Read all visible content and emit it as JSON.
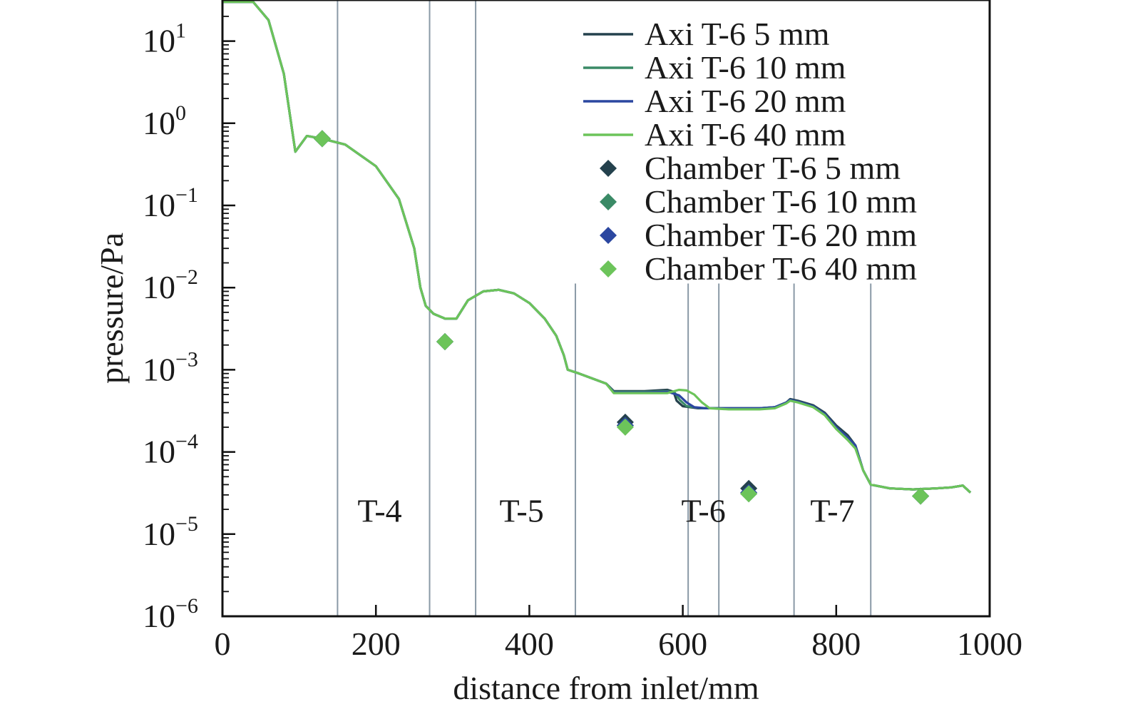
{
  "chart_data": {
    "type": "line",
    "xlabel": "distance from inlet/mm",
    "ylabel": "pressure/Pa",
    "xlim": [
      0,
      1000
    ],
    "ylim_log10": [
      -6,
      1.5
    ],
    "y_scale": "log",
    "grid": false,
    "legend_position": "top-right",
    "x_ticks": [
      0,
      200,
      400,
      600,
      800,
      1000
    ],
    "x_tick_labels": [
      "0",
      "200",
      "400",
      "600",
      "800",
      "1000"
    ],
    "y_ticks": [
      {
        "exp": 1,
        "base": "10",
        "sup": "1"
      },
      {
        "exp": 0,
        "base": "10",
        "sup": "0"
      },
      {
        "exp": -1,
        "base": "10",
        "sup": "−1"
      },
      {
        "exp": -2,
        "base": "10",
        "sup": "−2"
      },
      {
        "exp": -3,
        "base": "10",
        "sup": "−3"
      },
      {
        "exp": -4,
        "base": "10",
        "sup": "−4"
      },
      {
        "exp": -5,
        "base": "10",
        "sup": "−5"
      },
      {
        "exp": -6,
        "base": "10",
        "sup": "−6"
      }
    ],
    "section_lines": [
      {
        "x": 150,
        "ymax_log10": 1.5
      },
      {
        "x": 270,
        "ymax_log10": 1.5
      },
      {
        "x": 330,
        "ymax_log10": 1.5
      },
      {
        "x": 460,
        "ymax_log10": -1.95
      },
      {
        "x": 607,
        "ymax_log10": -1.95
      },
      {
        "x": 647,
        "ymax_log10": -1.95
      },
      {
        "x": 745,
        "ymax_log10": -1.95
      },
      {
        "x": 845,
        "ymax_log10": -1.95
      }
    ],
    "section_labels": [
      {
        "text": "T-4",
        "x": 205,
        "y_log10": -4.85
      },
      {
        "text": "T-5",
        "x": 390,
        "y_log10": -4.85
      },
      {
        "text": "T-6",
        "x": 627,
        "y_log10": -4.85
      },
      {
        "text": "T-7",
        "x": 795,
        "y_log10": -4.85
      }
    ],
    "series": [
      {
        "name": "Axi T-6 5 mm",
        "kind": "line",
        "color": "#24414d",
        "x": [
          0,
          40,
          60,
          80,
          95,
          110,
          130,
          160,
          200,
          230,
          250,
          258,
          265,
          275,
          290,
          305,
          320,
          340,
          360,
          380,
          400,
          420,
          435,
          445,
          450,
          465,
          500,
          510,
          550,
          580,
          588,
          592,
          600,
          620,
          640,
          660,
          700,
          720,
          735,
          740,
          750,
          770,
          785,
          800,
          815,
          825,
          835,
          845,
          870,
          900,
          930,
          950,
          965,
          975
        ],
        "y": [
          30,
          30,
          18,
          4,
          0.45,
          0.7,
          0.65,
          0.55,
          0.3,
          0.12,
          0.03,
          0.01,
          0.006,
          0.0048,
          0.0042,
          0.0042,
          0.007,
          0.009,
          0.0094,
          0.0085,
          0.0065,
          0.0042,
          0.0026,
          0.0015,
          0.001,
          0.0009,
          0.00068,
          0.00055,
          0.00055,
          0.00057,
          0.00054,
          0.00042,
          0.00036,
          0.00034,
          0.00034,
          0.00034,
          0.00034,
          0.00035,
          0.0004,
          0.00044,
          0.00042,
          0.00037,
          0.0003,
          0.00021,
          0.00016,
          0.00012,
          6e-05,
          4e-05,
          3.6e-05,
          3.5e-05,
          3.6e-05,
          3.7e-05,
          3.9e-05,
          3.2e-05
        ]
      },
      {
        "name": "Axi T-6 10 mm",
        "kind": "line",
        "color": "#3a8a66",
        "x": [
          0,
          40,
          60,
          80,
          95,
          110,
          130,
          160,
          200,
          230,
          250,
          258,
          265,
          275,
          290,
          305,
          320,
          340,
          360,
          380,
          400,
          420,
          435,
          445,
          450,
          465,
          500,
          510,
          550,
          580,
          590,
          596,
          605,
          625,
          640,
          660,
          700,
          720,
          735,
          740,
          750,
          770,
          785,
          800,
          815,
          825,
          835,
          845,
          870,
          900,
          930,
          950,
          965,
          975
        ],
        "y": [
          30,
          30,
          18,
          4,
          0.45,
          0.7,
          0.65,
          0.55,
          0.3,
          0.12,
          0.03,
          0.01,
          0.006,
          0.0048,
          0.0042,
          0.0042,
          0.007,
          0.009,
          0.0094,
          0.0085,
          0.0065,
          0.0042,
          0.0026,
          0.0015,
          0.001,
          0.0009,
          0.00068,
          0.00054,
          0.00054,
          0.00055,
          0.00052,
          0.00043,
          0.00036,
          0.00034,
          0.00034,
          0.00034,
          0.00034,
          0.00035,
          0.0004,
          0.00043,
          0.00041,
          0.00036,
          0.00029,
          0.0002,
          0.00015,
          0.00012,
          6e-05,
          4e-05,
          3.6e-05,
          3.5e-05,
          3.6e-05,
          3.7e-05,
          3.9e-05,
          3.2e-05
        ]
      },
      {
        "name": "Axi T-6 20 mm",
        "kind": "line",
        "color": "#2b47a0",
        "x": [
          0,
          40,
          60,
          80,
          95,
          110,
          130,
          160,
          200,
          230,
          250,
          258,
          265,
          275,
          290,
          305,
          320,
          340,
          360,
          380,
          400,
          420,
          435,
          445,
          450,
          465,
          500,
          510,
          550,
          580,
          595,
          605,
          615,
          630,
          645,
          660,
          700,
          720,
          735,
          740,
          750,
          770,
          785,
          800,
          815,
          825,
          835,
          845,
          870,
          900,
          930,
          950,
          965,
          975
        ],
        "y": [
          30,
          30,
          18,
          4,
          0.45,
          0.7,
          0.65,
          0.55,
          0.3,
          0.12,
          0.03,
          0.01,
          0.006,
          0.0048,
          0.0042,
          0.0042,
          0.007,
          0.009,
          0.0094,
          0.0085,
          0.0065,
          0.0042,
          0.0026,
          0.0015,
          0.001,
          0.0009,
          0.00068,
          0.00053,
          0.00053,
          0.00054,
          0.00049,
          0.0004,
          0.00035,
          0.00034,
          0.00034,
          0.00034,
          0.00034,
          0.00035,
          0.0004,
          0.00043,
          0.00041,
          0.00036,
          0.00029,
          0.0002,
          0.00015,
          0.00012,
          6e-05,
          4e-05,
          3.6e-05,
          3.5e-05,
          3.6e-05,
          3.7e-05,
          3.9e-05,
          3.2e-05
        ]
      },
      {
        "name": "Axi T-6 40 mm",
        "kind": "line",
        "color": "#6cc45a",
        "x": [
          0,
          40,
          60,
          80,
          95,
          110,
          130,
          160,
          200,
          230,
          250,
          258,
          265,
          275,
          290,
          305,
          320,
          340,
          360,
          380,
          400,
          420,
          435,
          445,
          450,
          465,
          500,
          510,
          550,
          580,
          595,
          605,
          615,
          625,
          635,
          660,
          700,
          720,
          735,
          740,
          750,
          770,
          785,
          800,
          815,
          825,
          835,
          845,
          870,
          900,
          930,
          950,
          965,
          975
        ],
        "y": [
          30,
          30,
          18,
          4,
          0.45,
          0.7,
          0.65,
          0.55,
          0.3,
          0.12,
          0.03,
          0.01,
          0.006,
          0.0048,
          0.0042,
          0.0042,
          0.007,
          0.009,
          0.0094,
          0.0085,
          0.0065,
          0.0042,
          0.0026,
          0.0015,
          0.001,
          0.0009,
          0.00068,
          0.00052,
          0.00052,
          0.00052,
          0.00057,
          0.00056,
          0.0005,
          0.0004,
          0.00034,
          0.00033,
          0.00033,
          0.00034,
          0.00039,
          0.00042,
          0.0004,
          0.00035,
          0.00028,
          0.00019,
          0.00014,
          0.00011,
          6e-05,
          4e-05,
          3.6e-05,
          3.5e-05,
          3.6e-05,
          3.7e-05,
          3.9e-05,
          3.2e-05
        ]
      },
      {
        "name": "Chamber T-6 5 mm",
        "kind": "marker",
        "color": "#24414d",
        "x": [
          130,
          290,
          525,
          686,
          910
        ],
        "y": [
          0.65,
          0.0022,
          0.00023,
          3.6e-05,
          2.9e-05
        ]
      },
      {
        "name": "Chamber T-6 10 mm",
        "kind": "marker",
        "color": "#3a8a66",
        "x": [
          130,
          290,
          525,
          686,
          910
        ],
        "y": [
          0.65,
          0.0022,
          0.00021,
          3.1e-05,
          2.9e-05
        ]
      },
      {
        "name": "Chamber T-6 20 mm",
        "kind": "marker",
        "color": "#2b47a0",
        "x": [
          130,
          290,
          525,
          686,
          910
        ],
        "y": [
          0.65,
          0.0022,
          0.00021,
          3.2e-05,
          2.9e-05
        ]
      },
      {
        "name": "Chamber T-6 40 mm",
        "kind": "marker",
        "color": "#6cc45a",
        "x": [
          130,
          290,
          525,
          686,
          910
        ],
        "y": [
          0.65,
          0.0022,
          0.0002,
          3.1e-05,
          2.9e-05
        ]
      }
    ]
  }
}
